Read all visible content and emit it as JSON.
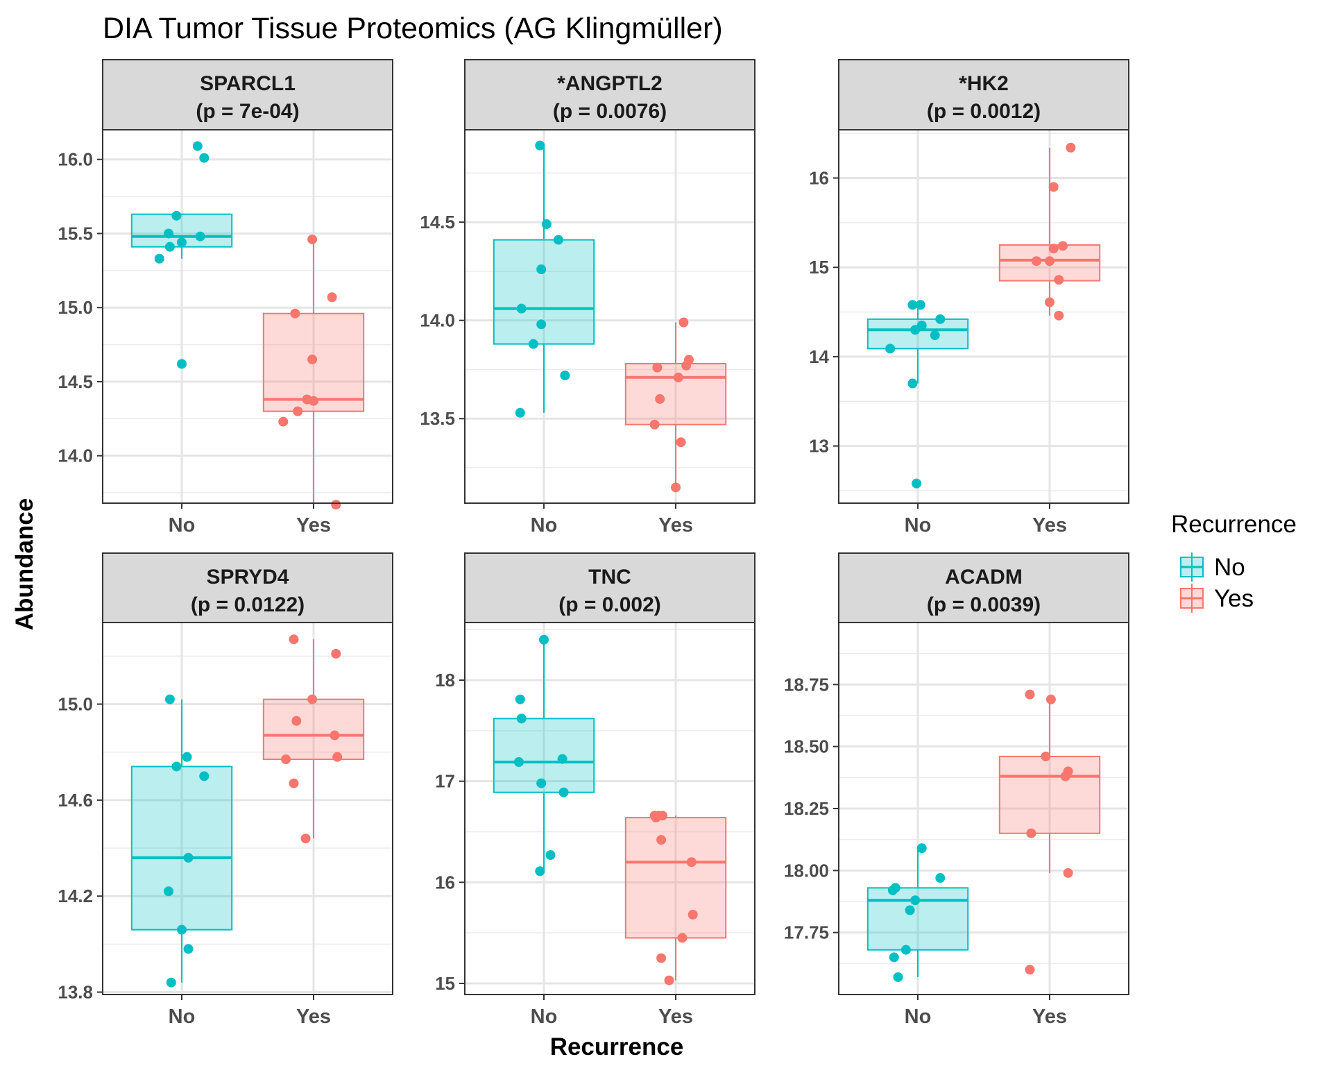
{
  "chart_data": {
    "type": "box",
    "title": "DIA Tumor Tissue Proteomics (AG Klingmüller)",
    "xlabel": "Recurrence",
    "ylabel": "Abundance",
    "categories": [
      "No",
      "Yes"
    ],
    "legend": {
      "title": "Recurrence",
      "placement": "right",
      "entries": [
        {
          "label": "No",
          "color": "#00BFC4"
        },
        {
          "label": "Yes",
          "color": "#F8766D"
        }
      ]
    },
    "colors": {
      "No": "#00BFC4",
      "Yes": "#F8766D"
    },
    "grid": true,
    "panels": [
      {
        "name": "SPARCL1",
        "pvalue": "(p = 7e-04)",
        "ylim": [
          13.68,
          16.2
        ],
        "yticks": [
          "16.0",
          "15.5",
          "15.0",
          "14.5",
          "14.0"
        ],
        "boxes": [
          {
            "group": "No",
            "min": 15.33,
            "q1": 15.41,
            "median": 15.48,
            "q3": 15.63,
            "max": 15.63,
            "points": [
              [
                -0.04,
                15.62
              ],
              [
                0.12,
                16.09
              ],
              [
                0.17,
                16.01
              ],
              [
                -0.1,
                15.5
              ],
              [
                -0.09,
                15.41
              ],
              [
                0.0,
                15.44
              ],
              [
                0.14,
                15.48
              ],
              [
                -0.17,
                15.33
              ],
              [
                0.0,
                14.62
              ]
            ]
          },
          {
            "group": "Yes",
            "min": 13.67,
            "q1": 14.3,
            "median": 14.38,
            "q3": 14.96,
            "max": 15.46,
            "points": [
              [
                -0.01,
                15.46
              ],
              [
                0.14,
                15.07
              ],
              [
                -0.14,
                14.96
              ],
              [
                -0.01,
                14.65
              ],
              [
                -0.05,
                14.38
              ],
              [
                0.0,
                14.37
              ],
              [
                -0.12,
                14.3
              ],
              [
                -0.23,
                14.23
              ],
              [
                0.17,
                13.67
              ]
            ]
          }
        ]
      },
      {
        "name": "*ANGPTL2",
        "pvalue": "(p = 0.0076)",
        "ylim": [
          13.07,
          14.97
        ],
        "yticks": [
          "14.5",
          "14.0",
          "13.5"
        ],
        "boxes": [
          {
            "group": "No",
            "min": 13.53,
            "q1": 13.88,
            "median": 14.06,
            "q3": 14.41,
            "max": 14.89,
            "points": [
              [
                -0.03,
                14.89
              ],
              [
                0.02,
                14.49
              ],
              [
                0.11,
                14.41
              ],
              [
                -0.02,
                14.26
              ],
              [
                -0.17,
                14.06
              ],
              [
                -0.02,
                13.98
              ],
              [
                -0.08,
                13.88
              ],
              [
                0.16,
                13.72
              ],
              [
                -0.18,
                13.53
              ]
            ]
          },
          {
            "group": "Yes",
            "min": 13.15,
            "q1": 13.47,
            "median": 13.71,
            "q3": 13.78,
            "max": 13.99,
            "points": [
              [
                0.06,
                13.99
              ],
              [
                0.1,
                13.8
              ],
              [
                0.08,
                13.77
              ],
              [
                -0.14,
                13.76
              ],
              [
                0.02,
                13.71
              ],
              [
                -0.12,
                13.6
              ],
              [
                -0.16,
                13.47
              ],
              [
                0.04,
                13.38
              ],
              [
                0.0,
                13.15
              ]
            ]
          }
        ]
      },
      {
        "name": "*HK2",
        "pvalue": "(p = 0.0012)",
        "ylim": [
          12.36,
          16.54
        ],
        "yticks": [
          "16",
          "15",
          "14",
          "13"
        ],
        "boxes": [
          {
            "group": "No",
            "min": 13.7,
            "q1": 14.09,
            "median": 14.3,
            "q3": 14.42,
            "max": 14.58,
            "points": [
              [
                -0.04,
                14.58
              ],
              [
                0.02,
                14.58
              ],
              [
                0.17,
                14.42
              ],
              [
                0.03,
                14.35
              ],
              [
                -0.02,
                14.3
              ],
              [
                0.13,
                14.24
              ],
              [
                -0.21,
                14.09
              ],
              [
                -0.04,
                13.7
              ],
              [
                -0.01,
                12.58
              ]
            ]
          },
          {
            "group": "Yes",
            "min": 14.46,
            "q1": 14.85,
            "median": 15.08,
            "q3": 15.25,
            "max": 16.34,
            "points": [
              [
                0.16,
                16.34
              ],
              [
                0.03,
                15.9
              ],
              [
                0.03,
                15.21
              ],
              [
                0.1,
                15.24
              ],
              [
                -0.1,
                15.07
              ],
              [
                0.0,
                15.07
              ],
              [
                0.07,
                14.86
              ],
              [
                0.0,
                14.61
              ],
              [
                0.07,
                14.46
              ]
            ]
          }
        ]
      },
      {
        "name": "SPRYD4",
        "pvalue": "(p = 0.0122)",
        "ylim": [
          13.79,
          15.34
        ],
        "yticks": [
          "15.0",
          "14.6",
          "14.2",
          "13.8"
        ],
        "boxes": [
          {
            "group": "No",
            "min": 13.84,
            "q1": 14.06,
            "median": 14.36,
            "q3": 14.74,
            "max": 15.02,
            "points": [
              [
                -0.09,
                15.02
              ],
              [
                0.04,
                14.78
              ],
              [
                -0.04,
                14.74
              ],
              [
                0.17,
                14.7
              ],
              [
                0.05,
                14.36
              ],
              [
                -0.1,
                14.22
              ],
              [
                0.0,
                14.06
              ],
              [
                0.05,
                13.98
              ],
              [
                -0.08,
                13.84
              ]
            ]
          },
          {
            "group": "Yes",
            "min": 14.44,
            "q1": 14.77,
            "median": 14.87,
            "q3": 15.02,
            "max": 15.27,
            "points": [
              [
                -0.15,
                15.27
              ],
              [
                0.17,
                15.21
              ],
              [
                -0.01,
                15.02
              ],
              [
                -0.13,
                14.93
              ],
              [
                0.16,
                14.87
              ],
              [
                -0.21,
                14.77
              ],
              [
                0.18,
                14.78
              ],
              [
                -0.15,
                14.67
              ],
              [
                -0.06,
                14.44
              ]
            ]
          }
        ]
      },
      {
        "name": "TNC",
        "pvalue": "(p = 0.002)",
        "ylim": [
          14.89,
          18.57
        ],
        "yticks": [
          "18",
          "17",
          "16",
          "15"
        ],
        "boxes": [
          {
            "group": "No",
            "min": 16.11,
            "q1": 16.89,
            "median": 17.19,
            "q3": 17.62,
            "max": 18.4,
            "points": [
              [
                0.0,
                18.4
              ],
              [
                -0.18,
                17.81
              ],
              [
                -0.17,
                17.62
              ],
              [
                0.14,
                17.22
              ],
              [
                -0.19,
                17.19
              ],
              [
                -0.02,
                16.98
              ],
              [
                0.15,
                16.89
              ],
              [
                0.05,
                16.27
              ],
              [
                -0.03,
                16.11
              ]
            ]
          },
          {
            "group": "Yes",
            "min": 15.03,
            "q1": 15.45,
            "median": 16.2,
            "q3": 16.64,
            "max": 16.66,
            "points": [
              [
                -0.16,
                16.66
              ],
              [
                -0.15,
                16.64
              ],
              [
                -0.13,
                16.66
              ],
              [
                -0.1,
                16.66
              ],
              [
                -0.11,
                16.42
              ],
              [
                0.12,
                16.2
              ],
              [
                0.13,
                15.68
              ],
              [
                0.05,
                15.45
              ],
              [
                -0.11,
                15.25
              ],
              [
                -0.05,
                15.03
              ]
            ]
          }
        ]
      },
      {
        "name": "ACADM",
        "pvalue": "(p = 0.0039)",
        "ylim": [
          17.5,
          19.0
        ],
        "yticks": [
          "18.75",
          "18.50",
          "18.25",
          "18.00",
          "17.75"
        ],
        "boxes": [
          {
            "group": "No",
            "min": 17.57,
            "q1": 17.68,
            "median": 17.88,
            "q3": 17.93,
            "max": 18.09,
            "points": [
              [
                0.03,
                18.09
              ],
              [
                0.17,
                17.97
              ],
              [
                -0.17,
                17.93
              ],
              [
                -0.19,
                17.92
              ],
              [
                -0.02,
                17.88
              ],
              [
                -0.06,
                17.84
              ],
              [
                -0.09,
                17.68
              ],
              [
                -0.18,
                17.65
              ],
              [
                -0.15,
                17.57
              ]
            ]
          },
          {
            "group": "Yes",
            "min": 17.99,
            "q1": 18.15,
            "median": 18.38,
            "q3": 18.46,
            "max": 18.69,
            "points": [
              [
                -0.15,
                18.71
              ],
              [
                0.01,
                18.69
              ],
              [
                -0.03,
                18.46
              ],
              [
                0.14,
                18.4
              ],
              [
                0.12,
                18.38
              ],
              [
                0.12,
                18.38
              ],
              [
                -0.14,
                18.15
              ],
              [
                0.14,
                17.99
              ],
              [
                -0.15,
                17.6
              ]
            ]
          }
        ]
      }
    ]
  }
}
